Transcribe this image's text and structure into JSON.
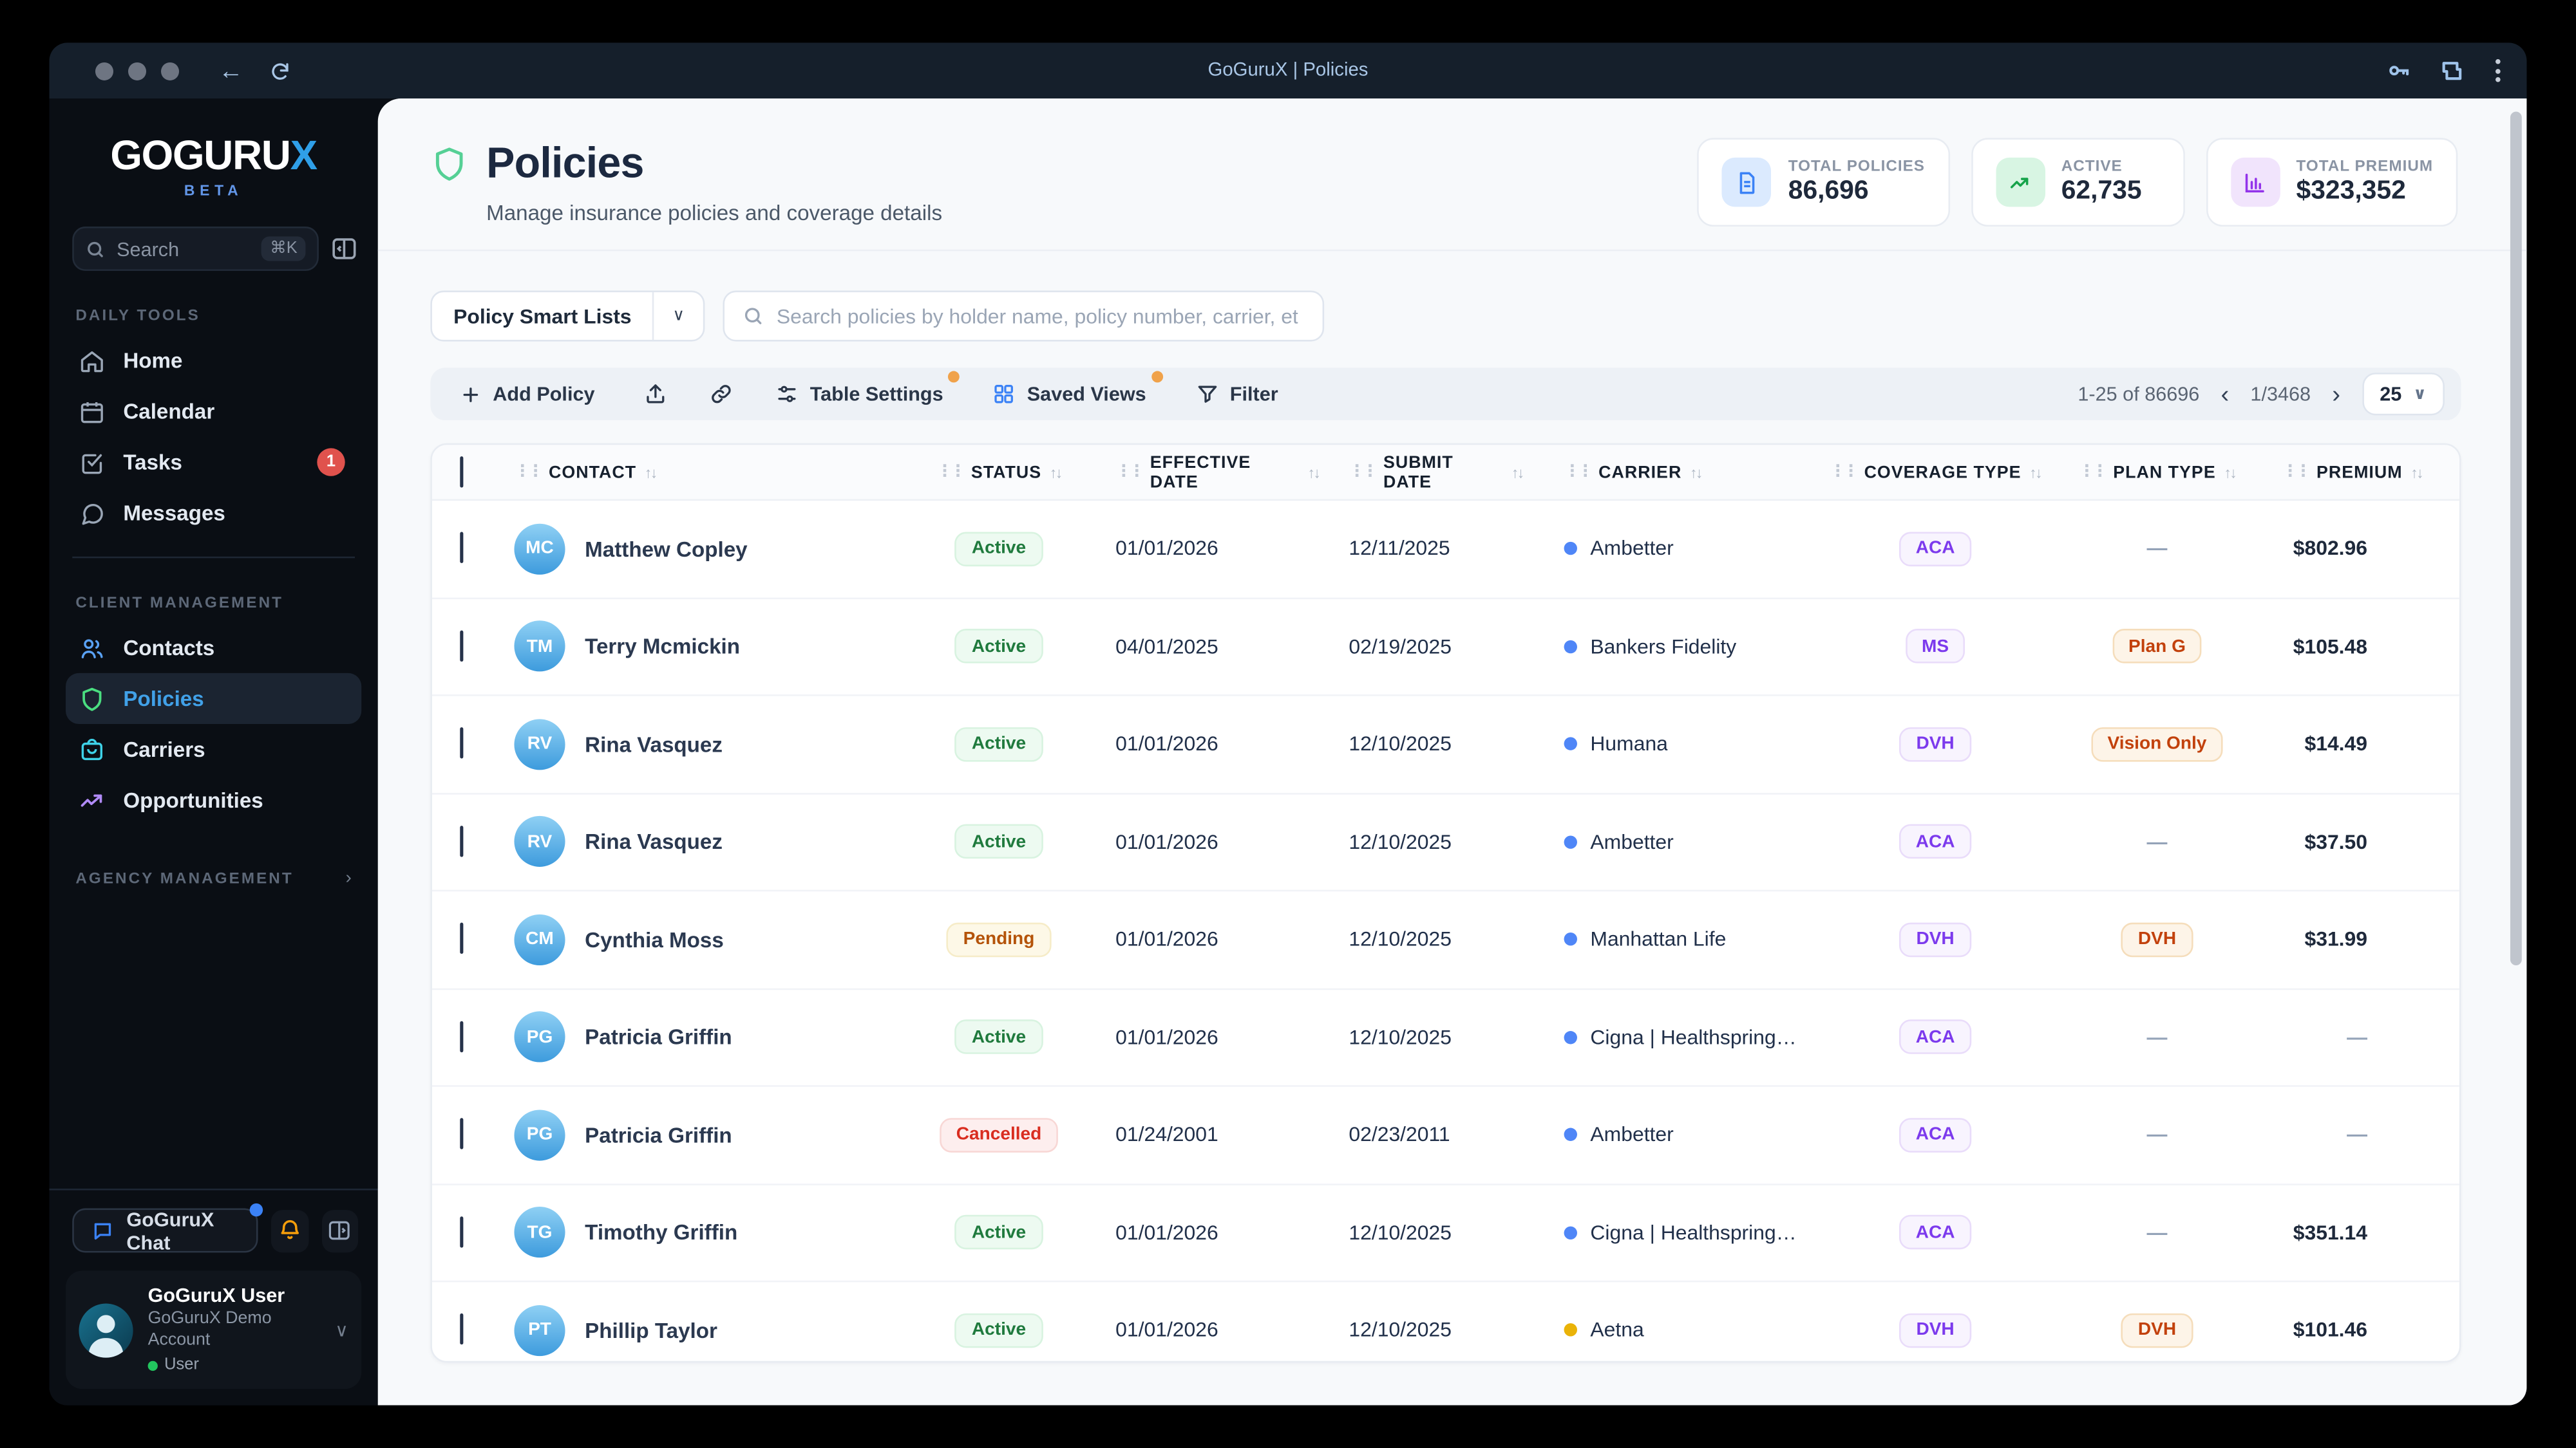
{
  "glyphs": {
    "back": "←",
    "chevron_left": "‹",
    "chevron_right_pg": "›",
    "chevron_right": "›",
    "caret_down": "∨",
    "sort": "↑↓",
    "drag": "⋮⋮",
    "dash": "—"
  },
  "browser": {
    "title": "GoGuruX | Policies"
  },
  "sidebar": {
    "logo": {
      "main": "GOGURU",
      "x": "X",
      "beta": "BETA"
    },
    "search": {
      "placeholder": "Search",
      "shortcut": "⌘K"
    },
    "sections": [
      {
        "label": "DAILY TOOLS",
        "items": [
          {
            "label": "Home",
            "icon": "home-icon"
          },
          {
            "label": "Calendar",
            "icon": "calendar-icon"
          },
          {
            "label": "Tasks",
            "icon": "tasks-icon",
            "badge": "1"
          },
          {
            "label": "Messages",
            "icon": "messages-icon"
          }
        ]
      },
      {
        "label": "CLIENT MANAGEMENT",
        "items": [
          {
            "label": "Contacts",
            "icon": "contacts-icon"
          },
          {
            "label": "Policies",
            "icon": "shield-icon",
            "active": true
          },
          {
            "label": "Carriers",
            "icon": "carriers-icon"
          },
          {
            "label": "Opportunities",
            "icon": "opportunities-icon"
          }
        ]
      }
    ],
    "agency_section": {
      "label": "AGENCY MANAGEMENT"
    },
    "footer": {
      "chat_label": "GoGuruX Chat",
      "user": {
        "name": "GoGuruX User",
        "account": "GoGuruX Demo Account",
        "role": "User"
      }
    }
  },
  "header": {
    "title": "Policies",
    "subtitle": "Manage insurance policies and coverage details",
    "stats": [
      {
        "label": "TOTAL POLICIES",
        "value": "86,696",
        "icon": "document-icon",
        "accent": "#3b82f6",
        "bg": "#dbeafe"
      },
      {
        "label": "ACTIVE",
        "value": "62,735",
        "icon": "trend-up-icon",
        "accent": "#16a34a",
        "bg": "#d8f5e3"
      },
      {
        "label": "TOTAL PREMIUM",
        "value": "$323,352",
        "icon": "bar-chart-icon",
        "accent": "#9333ea",
        "bg": "#f1e4fc"
      }
    ]
  },
  "filters": {
    "smart_lists_label": "Policy Smart Lists",
    "search_placeholder": "Search policies by holder name, policy number, carrier, et"
  },
  "toolbar": {
    "add_label": "Add Policy",
    "table_settings_label": "Table Settings",
    "saved_views_label": "Saved Views",
    "filter_label": "Filter",
    "pagination": {
      "range": "1-25 of 86696",
      "page": "1/3468",
      "page_size": "25"
    }
  },
  "table": {
    "columns": [
      "CONTACT",
      "STATUS",
      "EFFECTIVE DATE",
      "SUBMIT DATE",
      "CARRIER",
      "COVERAGE TYPE",
      "PLAN TYPE",
      "PREMIUM"
    ],
    "colors": {
      "carrier_dots": {
        "blue": "#4f86f7",
        "yellow": "#eab308"
      }
    },
    "rows": [
      {
        "initials": "MC",
        "name": "Matthew Copley",
        "status": "Active",
        "effective": "01/01/2026",
        "submitted": "12/11/2025",
        "carrier": "Ambetter",
        "carrier_dot": "blue",
        "coverage": "ACA",
        "plan": null,
        "premium": "$802.96"
      },
      {
        "initials": "TM",
        "name": "Terry Mcmickin",
        "status": "Active",
        "effective": "04/01/2025",
        "submitted": "02/19/2025",
        "carrier": "Bankers Fidelity",
        "carrier_dot": "blue",
        "coverage": "MS",
        "plan": "Plan G",
        "premium": "$105.48"
      },
      {
        "initials": "RV",
        "name": "Rina Vasquez",
        "status": "Active",
        "effective": "01/01/2026",
        "submitted": "12/10/2025",
        "carrier": "Humana",
        "carrier_dot": "blue",
        "coverage": "DVH",
        "plan": "Vision Only",
        "premium": "$14.49"
      },
      {
        "initials": "RV",
        "name": "Rina Vasquez",
        "status": "Active",
        "effective": "01/01/2026",
        "submitted": "12/10/2025",
        "carrier": "Ambetter",
        "carrier_dot": "blue",
        "coverage": "ACA",
        "plan": null,
        "premium": "$37.50"
      },
      {
        "initials": "CM",
        "name": "Cynthia Moss",
        "status": "Pending",
        "effective": "01/01/2026",
        "submitted": "12/10/2025",
        "carrier": "Manhattan Life",
        "carrier_dot": "blue",
        "coverage": "DVH",
        "plan": "DVH",
        "premium": "$31.99"
      },
      {
        "initials": "PG",
        "name": "Patricia Griffin",
        "status": "Active",
        "effective": "01/01/2026",
        "submitted": "12/10/2025",
        "carrier": "Cigna | Healthspring…",
        "carrier_dot": "blue",
        "coverage": "ACA",
        "plan": null,
        "premium": null
      },
      {
        "initials": "PG",
        "name": "Patricia Griffin",
        "status": "Cancelled",
        "effective": "01/24/2001",
        "submitted": "02/23/2011",
        "carrier": "Ambetter",
        "carrier_dot": "blue",
        "coverage": "ACA",
        "plan": null,
        "premium": null
      },
      {
        "initials": "TG",
        "name": "Timothy Griffin",
        "status": "Active",
        "effective": "01/01/2026",
        "submitted": "12/10/2025",
        "carrier": "Cigna | Healthspring…",
        "carrier_dot": "blue",
        "coverage": "ACA",
        "plan": null,
        "premium": "$351.14"
      },
      {
        "initials": "PT",
        "name": "Phillip Taylor",
        "status": "Active",
        "effective": "01/01/2026",
        "submitted": "12/10/2025",
        "carrier": "Aetna",
        "carrier_dot": "yellow",
        "coverage": "DVH",
        "plan": "DVH",
        "premium": "$101.46"
      }
    ]
  }
}
